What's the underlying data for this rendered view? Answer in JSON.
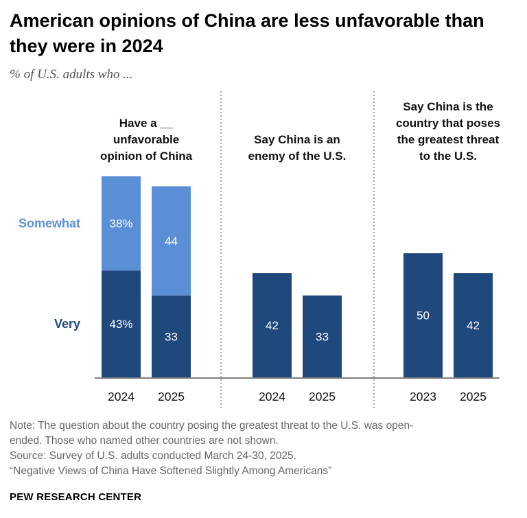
{
  "title": "American opinions of China are less unfavorable than they were in 2024",
  "subtitle": "% of U.S. adults who ...",
  "note_lines": [
    "Note: The question about the country posing the greatest threat to the U.S. was open-",
    "ended. Those who named other countries are not shown.",
    "Source: Survey of U.S. adults conducted March 24-30, 2025.",
    "“Negative Views of China Have Softened Slightly Among Americans”"
  ],
  "brand": "PEW RESEARCH CENTER",
  "colors": {
    "very": "#1f497d",
    "somewhat": "#5a8fd6",
    "axis": "#7f7f7f"
  },
  "chart_data": {
    "type": "bar",
    "stacked_legend": {
      "somewhat": "Somewhat",
      "very": "Very"
    },
    "panels": [
      {
        "heading": [
          "Have a __",
          "unfavorable",
          "opinion of China"
        ],
        "categories": [
          "2024",
          "2025"
        ],
        "series": [
          {
            "name": "Very",
            "values": [
              43,
              33
            ],
            "labels": [
              "43%",
              "33"
            ]
          },
          {
            "name": "Somewhat",
            "values": [
              38,
              44
            ],
            "labels": [
              "38%",
              "44"
            ]
          }
        ]
      },
      {
        "heading": [
          "Say China is an",
          "enemy of the U.S."
        ],
        "categories": [
          "2024",
          "2025"
        ],
        "series": [
          {
            "values": [
              42,
              33
            ],
            "labels": [
              "42",
              "33"
            ]
          }
        ]
      },
      {
        "heading": [
          "Say China is the",
          "country that poses",
          "the greatest threat",
          "to the U.S."
        ],
        "categories": [
          "2023",
          "2025"
        ],
        "series": [
          {
            "values": [
              50,
              42
            ],
            "labels": [
              "50",
              "42"
            ]
          }
        ]
      }
    ],
    "ylim": [
      0,
      81
    ]
  }
}
